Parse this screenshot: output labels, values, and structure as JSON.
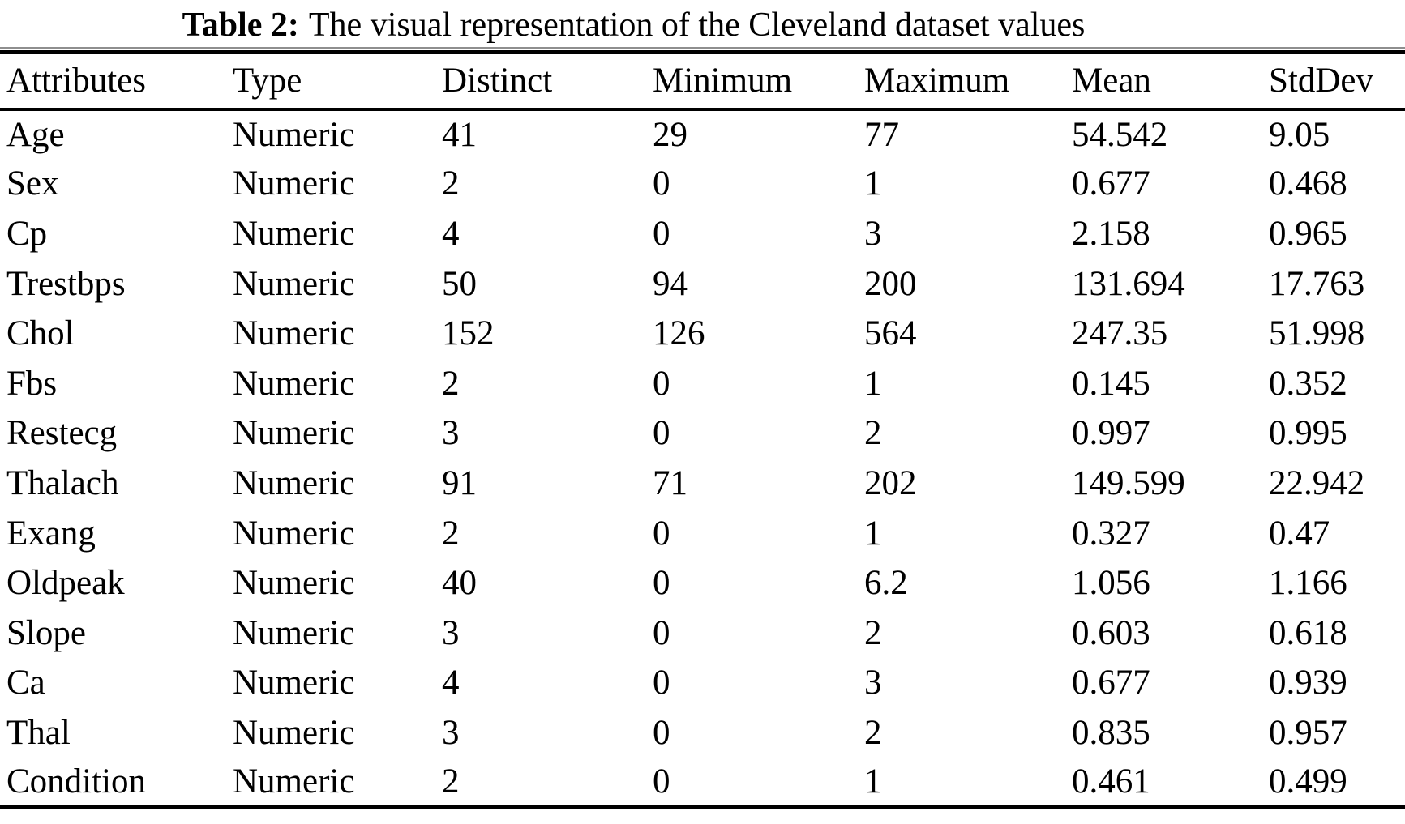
{
  "caption": {
    "label": "Table 2:",
    "text": "The visual representation of the Cleveland dataset values"
  },
  "table": {
    "columns": [
      "Attributes",
      "Type",
      "Distinct",
      "Minimum",
      "Maximum",
      "Mean",
      "StdDev"
    ],
    "rows": [
      [
        "Age",
        "Numeric",
        "41",
        "29",
        "77",
        "54.542",
        "9.05"
      ],
      [
        "Sex",
        "Numeric",
        "2",
        "0",
        "1",
        "0.677",
        "0.468"
      ],
      [
        "Cp",
        "Numeric",
        "4",
        "0",
        "3",
        "2.158",
        "0.965"
      ],
      [
        "Trestbps",
        "Numeric",
        "50",
        "94",
        "200",
        "131.694",
        "17.763"
      ],
      [
        "Chol",
        "Numeric",
        "152",
        "126",
        "564",
        "247.35",
        "51.998"
      ],
      [
        "Fbs",
        "Numeric",
        "2",
        "0",
        "1",
        "0.145",
        "0.352"
      ],
      [
        "Restecg",
        "Numeric",
        "3",
        "0",
        "2",
        "0.997",
        "0.995"
      ],
      [
        "Thalach",
        "Numeric",
        "91",
        "71",
        "202",
        "149.599",
        "22.942"
      ],
      [
        "Exang",
        "Numeric",
        "2",
        "0",
        "1",
        "0.327",
        "0.47"
      ],
      [
        "Oldpeak",
        "Numeric",
        "40",
        "0",
        "6.2",
        "1.056",
        "1.166"
      ],
      [
        "Slope",
        "Numeric",
        "3",
        "0",
        "2",
        "0.603",
        "0.618"
      ],
      [
        "Ca",
        "Numeric",
        "4",
        "0",
        "3",
        "0.677",
        "0.939"
      ],
      [
        "Thal",
        "Numeric",
        "3",
        "0",
        "2",
        "0.835",
        "0.957"
      ],
      [
        "Condition",
        "Numeric",
        "2",
        "0",
        "1",
        "0.461",
        "0.499"
      ]
    ]
  },
  "colors": {
    "text": "#000000",
    "background": "#ffffff",
    "rule_thick": "#000000",
    "rule_thin": "#8e8e8e"
  }
}
